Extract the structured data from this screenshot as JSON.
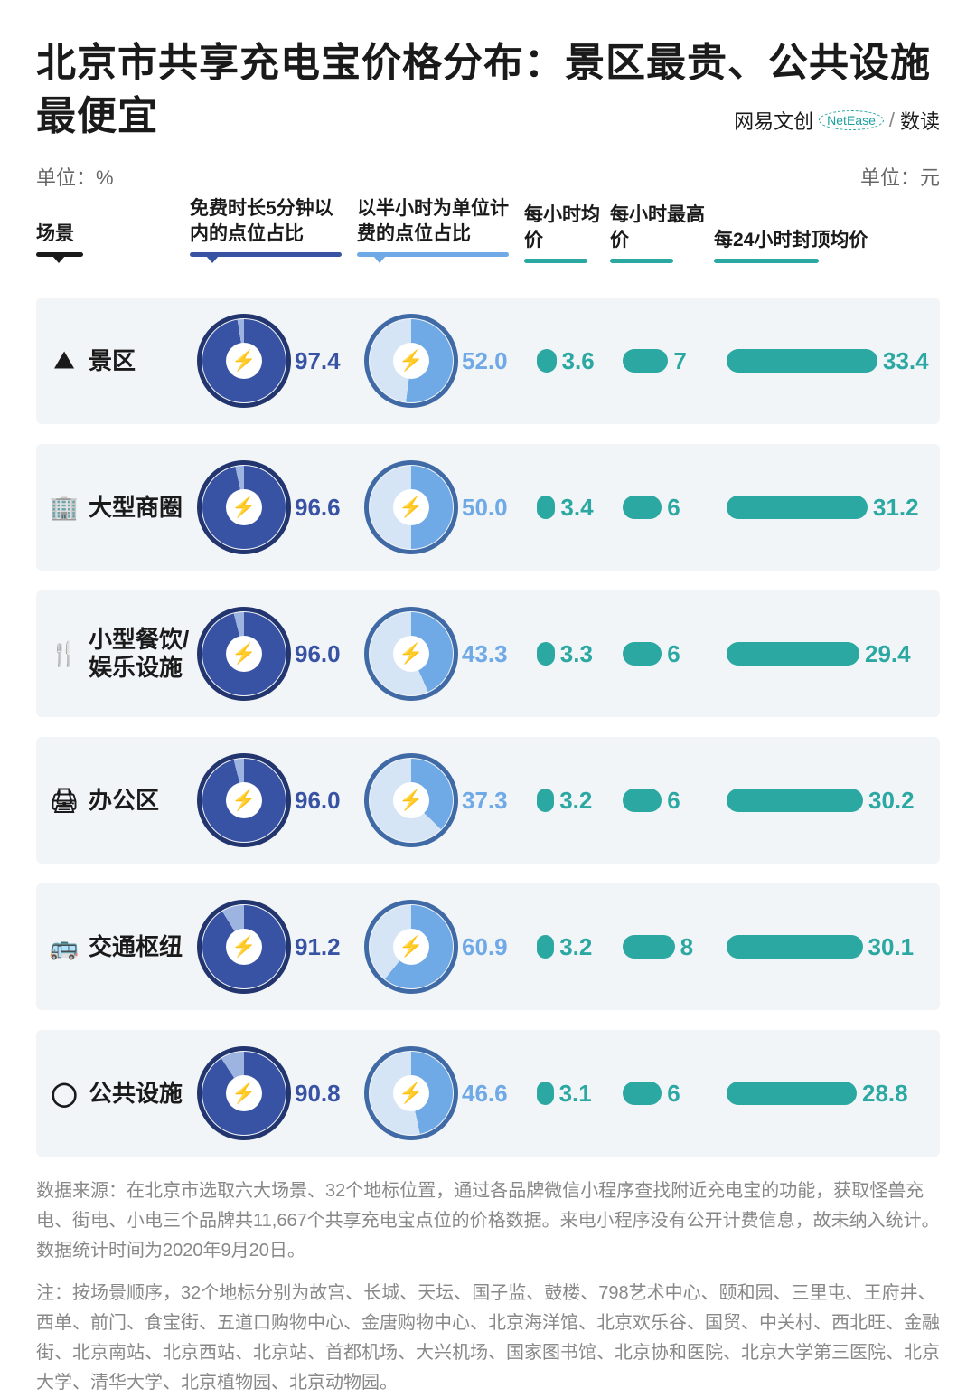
{
  "title": "北京市共享充电宝价格分布：景区最贵、公共设施最便宜",
  "brand": {
    "text1": "网易文创",
    "badge": "NetEase",
    "sep": "/",
    "text2": "数读"
  },
  "units": {
    "left": "单位：%",
    "right": "单位：元"
  },
  "headers": {
    "scene": "场景",
    "pie1": "免费时长5分钟以内的点位占比",
    "pie2": "以半小时为单位计费的点位占比",
    "avg": "每小时均　价",
    "max": "每小时最高价",
    "cap": "每24小时封顶均价"
  },
  "colors": {
    "row_bg": "#f2f5f8",
    "text": "#1a1a1a",
    "pie1_fill": "#3953a4",
    "pie1_rest": "#9db3e0",
    "pie1_border": "#22356e",
    "pie1_value_color": "#3953a4",
    "pie2_fill": "#6fa9e6",
    "pie2_rest": "#d6e5f5",
    "pie2_border": "#3f6aa5",
    "pie2_value_color": "#6fa9e6",
    "teal": "#2ba8a2",
    "bolt": "⚡"
  },
  "scale": {
    "avg_max": 10,
    "max_max": 10,
    "cap_max": 40,
    "avg_w": 60,
    "max_w": 72,
    "cap_w": 200
  },
  "rows": [
    {
      "icon": "⛰",
      "label": "景区",
      "pie1": 97.4,
      "pie2": 52.0,
      "avg": 3.6,
      "max": 7,
      "cap": 33.4
    },
    {
      "icon": "🏢",
      "label": "大型商圈",
      "pie1": 96.6,
      "pie2": 50.0,
      "avg": 3.4,
      "max": 6,
      "cap": 31.2
    },
    {
      "icon": "🍴",
      "label": "小型餐饮/娱乐设施",
      "pie1": 96.0,
      "pie2": 43.3,
      "avg": 3.3,
      "max": 6,
      "cap": 29.4
    },
    {
      "icon": "🖨",
      "label": "办公区",
      "pie1": 96.0,
      "pie2": 37.3,
      "avg": 3.2,
      "max": 6,
      "cap": 30.2
    },
    {
      "icon": "🚌",
      "label": "交通枢纽",
      "pie1": 91.2,
      "pie2": 60.9,
      "avg": 3.2,
      "max": 8,
      "cap": 30.1
    },
    {
      "icon": "◯",
      "label": "公共设施",
      "pie1": 90.8,
      "pie2": 46.6,
      "avg": 3.1,
      "max": 6,
      "cap": 28.8
    }
  ],
  "footer": {
    "source": "数据来源：在北京市选取六大场景、32个地标位置，通过各品牌微信小程序查找附近充电宝的功能，获取怪兽充电、街电、小电三个品牌共11,667个共享充电宝点位的价格数据。来电小程序没有公开计费信息，故未纳入统计。数据统计时间为2020年9月20日。",
    "note": "注：按场景顺序，32个地标分别为故宫、长城、天坛、国子监、鼓楼、798艺术中心、颐和园、三里屯、王府井、西单、前门、食宝街、五道口购物中心、金唐购物中心、北京海洋馆、北京欢乐谷、国贸、中关村、西北旺、金融街、北京南站、北京西站、北京站、首都机场、大兴机场、国家图书馆、北京协和医院、北京大学第三医院、北京大学、清华大学、北京植物园、北京动物园。"
  }
}
